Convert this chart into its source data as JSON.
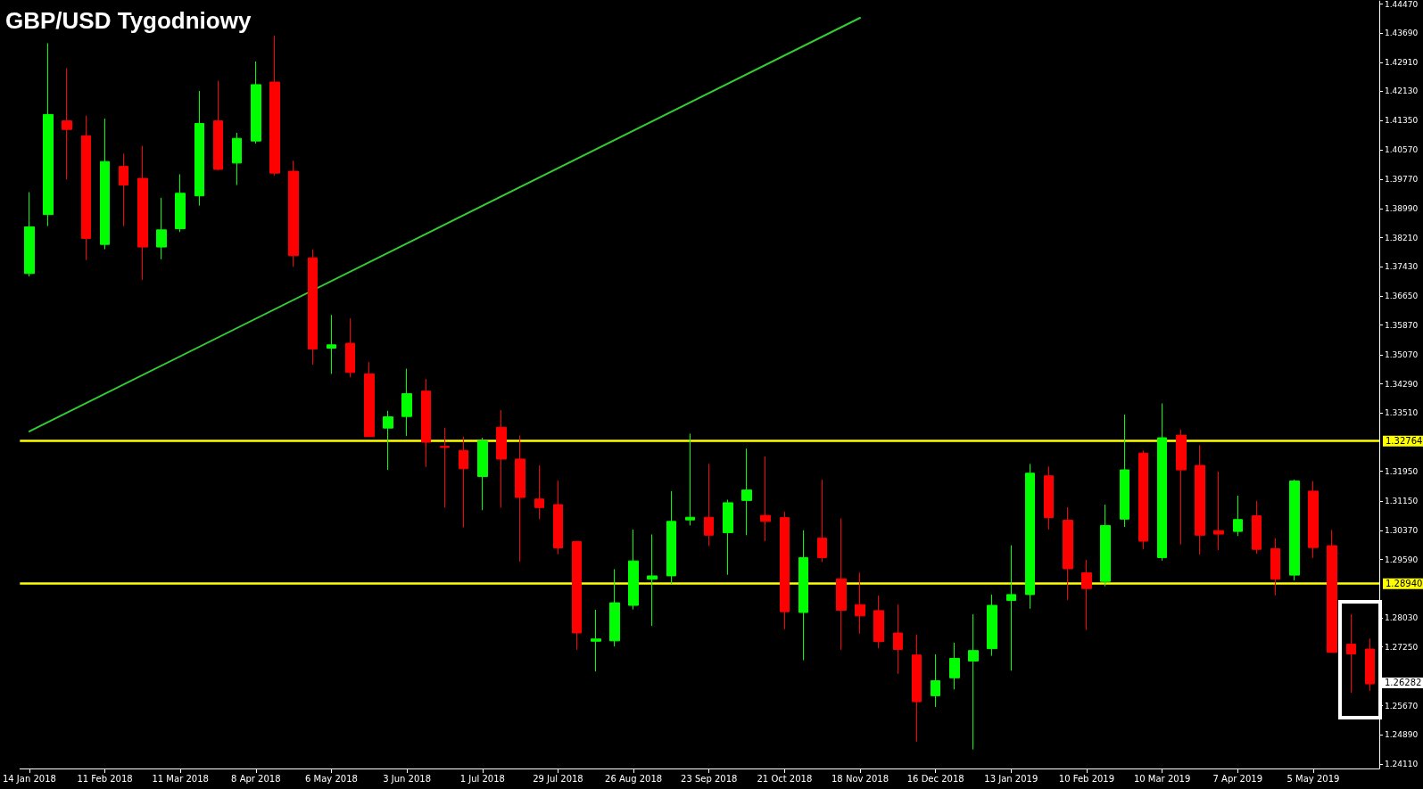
{
  "chart_data": {
    "type": "candlestick",
    "title": "GBP/USD Tygodniowy",
    "categories": [
      "14 Jan 2018",
      null,
      null,
      null,
      "11 Feb 2018",
      null,
      null,
      null,
      "11 Mar 2018",
      null,
      null,
      null,
      "8 Apr 2018",
      null,
      null,
      null,
      "6 May 2018",
      null,
      null,
      null,
      "3 Jun 2018",
      null,
      null,
      null,
      "1 Jul 2018",
      null,
      null,
      null,
      "29 Jul 2018",
      null,
      null,
      null,
      "26 Aug 2018",
      null,
      null,
      null,
      "23 Sep 2018",
      null,
      null,
      null,
      "21 Oct 2018",
      null,
      null,
      null,
      "18 Nov 2018",
      null,
      null,
      null,
      "16 Dec 2018",
      null,
      null,
      null,
      "13 Jan 2019",
      null,
      null,
      null,
      "10 Feb 2019",
      null,
      null,
      null,
      "10 Mar 2019",
      null,
      null,
      null,
      "7 Apr 2019",
      null,
      null,
      null,
      "5 May 2019",
      null,
      null,
      null
    ],
    "ohlc": [
      [
        1.3725,
        1.3943,
        1.3717,
        1.385
      ],
      [
        1.3883,
        1.4342,
        1.3852,
        1.4151
      ],
      [
        1.4134,
        1.4275,
        1.3977,
        1.4111
      ],
      [
        1.4094,
        1.4148,
        1.3761,
        1.3819
      ],
      [
        1.3803,
        1.414,
        1.379,
        1.4025
      ],
      [
        1.4012,
        1.4046,
        1.3852,
        1.3962
      ],
      [
        1.398,
        1.4067,
        1.3708,
        1.3796
      ],
      [
        1.3796,
        1.3928,
        1.3763,
        1.3842
      ],
      [
        1.3845,
        1.3991,
        1.3836,
        1.394
      ],
      [
        1.3933,
        1.4214,
        1.3907,
        1.4127
      ],
      [
        1.4134,
        1.4241,
        1.4002,
        1.4004
      ],
      [
        1.4021,
        1.4102,
        1.3962,
        1.4087
      ],
      [
        1.408,
        1.4293,
        1.4073,
        1.4231
      ],
      [
        1.4238,
        1.4362,
        1.3988,
        1.3994
      ],
      [
        1.3999,
        1.4027,
        1.3743,
        1.3773
      ],
      [
        1.3767,
        1.379,
        1.3481,
        1.3523
      ],
      [
        1.3525,
        1.3614,
        1.3456,
        1.3534
      ],
      [
        1.3538,
        1.3605,
        1.3447,
        1.346
      ],
      [
        1.3456,
        1.3488,
        1.3288,
        1.3288
      ],
      [
        1.3311,
        1.3357,
        1.3199,
        1.3341
      ],
      [
        1.3342,
        1.347,
        1.329,
        1.3403
      ],
      [
        1.341,
        1.3443,
        1.3207,
        1.3273
      ],
      [
        1.3262,
        1.3312,
        1.3098,
        1.3259
      ],
      [
        1.3251,
        1.3288,
        1.3045,
        1.3202
      ],
      [
        1.3181,
        1.3285,
        1.3091,
        1.3277
      ],
      [
        1.3313,
        1.3359,
        1.3098,
        1.3228
      ],
      [
        1.3228,
        1.3291,
        1.2953,
        1.3125
      ],
      [
        1.3121,
        1.3211,
        1.3067,
        1.3098
      ],
      [
        1.3106,
        1.317,
        1.2973,
        1.299
      ],
      [
        1.3007,
        1.3007,
        1.2717,
        1.2762
      ],
      [
        1.274,
        1.2824,
        1.2659,
        1.2746
      ],
      [
        1.2741,
        1.2933,
        1.2726,
        1.2843
      ],
      [
        1.2836,
        1.3039,
        1.2825,
        1.2955
      ],
      [
        1.2906,
        1.3026,
        1.2781,
        1.2915
      ],
      [
        1.2915,
        1.3142,
        1.2893,
        1.3061
      ],
      [
        1.3065,
        1.3296,
        1.305,
        1.3072
      ],
      [
        1.3072,
        1.3215,
        1.2995,
        1.3024
      ],
      [
        1.3031,
        1.3119,
        1.2918,
        1.3111
      ],
      [
        1.3117,
        1.3256,
        1.3024,
        1.3145
      ],
      [
        1.3077,
        1.3235,
        1.3008,
        1.3061
      ],
      [
        1.3071,
        1.3087,
        1.2772,
        1.2819
      ],
      [
        1.2817,
        1.3037,
        1.2689,
        1.2964
      ],
      [
        1.3016,
        1.3173,
        1.2952,
        1.2964
      ],
      [
        1.2907,
        1.3069,
        1.2717,
        1.2823
      ],
      [
        1.2838,
        1.2924,
        1.276,
        1.2808
      ],
      [
        1.2822,
        1.2862,
        1.2721,
        1.2739
      ],
      [
        1.2762,
        1.2838,
        1.2653,
        1.2718
      ],
      [
        1.2703,
        1.2758,
        1.2471,
        1.2578
      ],
      [
        1.2594,
        1.2705,
        1.2564,
        1.2634
      ],
      [
        1.2642,
        1.2736,
        1.2611,
        1.2694
      ],
      [
        1.2687,
        1.2812,
        1.245,
        1.2715
      ],
      [
        1.272,
        1.2865,
        1.2701,
        1.2836
      ],
      [
        1.2849,
        1.2997,
        1.2661,
        1.2865
      ],
      [
        1.2865,
        1.3215,
        1.2827,
        1.319
      ],
      [
        1.3183,
        1.3208,
        1.3039,
        1.3071
      ],
      [
        1.3064,
        1.3099,
        1.285,
        1.2934
      ],
      [
        1.2923,
        1.2958,
        1.277,
        1.2881
      ],
      [
        1.29,
        1.3106,
        1.2887,
        1.305
      ],
      [
        1.3067,
        1.3347,
        1.3046,
        1.3199
      ],
      [
        1.3244,
        1.3251,
        1.2987,
        1.3008
      ],
      [
        1.2964,
        1.3377,
        1.2956,
        1.3285
      ],
      [
        1.3292,
        1.3307,
        1.2999,
        1.3199
      ],
      [
        1.3211,
        1.3265,
        1.2972,
        1.3024
      ],
      [
        1.3036,
        1.3194,
        1.2984,
        1.3027
      ],
      [
        1.3034,
        1.313,
        1.3022,
        1.3066
      ],
      [
        1.3076,
        1.3116,
        1.2974,
        1.2986
      ],
      [
        1.2988,
        1.3016,
        1.2863,
        1.2906
      ],
      [
        1.2917,
        1.3173,
        1.2903,
        1.3169
      ],
      [
        1.3142,
        1.3169,
        1.2963,
        1.2991
      ],
      [
        1.2996,
        1.3038,
        1.2709,
        1.271
      ],
      [
        1.2732,
        1.2812,
        1.2602,
        1.2706
      ],
      [
        1.2719,
        1.2747,
        1.2607,
        1.2626
      ]
    ],
    "series": [
      {
        "type": "line",
        "color": "#33cc33",
        "x": [
          "14 Jan 2018",
          "18 Nov 2018"
        ],
        "values": [
          1.3302,
          1.441
        ]
      }
    ],
    "ylim": [
      1.2399,
      1.4455
    ],
    "yticks": [
      {
        "value": 1.2411,
        "label": "1.24110"
      },
      {
        "value": 1.2489,
        "label": "1.24890"
      },
      {
        "value": 1.2567,
        "label": "1.25670"
      },
      {
        "value": 1.2725,
        "label": "1.27250"
      },
      {
        "value": 1.2803,
        "label": "1.28030"
      },
      {
        "value": 1.2959,
        "label": "1.29590"
      },
      {
        "value": 1.3037,
        "label": "1.30370"
      },
      {
        "value": 1.3115,
        "label": "1.31150"
      },
      {
        "value": 1.3195,
        "label": "1.31950"
      },
      {
        "value": 1.3351,
        "label": "1.33510"
      },
      {
        "value": 1.3429,
        "label": "1.34290"
      },
      {
        "value": 1.3507,
        "label": "1.35070"
      },
      {
        "value": 1.3587,
        "label": "1.35870"
      },
      {
        "value": 1.3665,
        "label": "1.36650"
      },
      {
        "value": 1.3743,
        "label": "1.37430"
      },
      {
        "value": 1.3821,
        "label": "1.38210"
      },
      {
        "value": 1.3899,
        "label": "1.38990"
      },
      {
        "value": 1.3977,
        "label": "1.39770"
      },
      {
        "value": 1.4057,
        "label": "1.40570"
      },
      {
        "value": 1.4135,
        "label": "1.41350"
      },
      {
        "value": 1.4213,
        "label": "1.42130"
      },
      {
        "value": 1.4291,
        "label": "1.42910"
      },
      {
        "value": 1.4369,
        "label": "1.43690"
      },
      {
        "value": 1.4447,
        "label": "1.44470"
      }
    ],
    "ref_lines": [
      {
        "axis": "y",
        "value": 1.32764,
        "label": "1.32764",
        "color": "#ffff00"
      },
      {
        "axis": "y",
        "value": 1.2894,
        "label": "1.28940",
        "color": "#ffff00"
      }
    ],
    "annotations": [
      "1.26282"
    ],
    "grid": false
  }
}
